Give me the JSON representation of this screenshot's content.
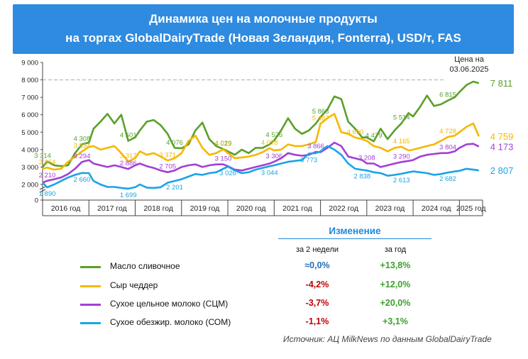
{
  "title": {
    "line1": "Динамика цен на молочные продукты",
    "line2": "на торгах GlobalDairyTrade (Новая Зеландия, Fonterra), USD/т, FAS"
  },
  "price_note": {
    "line1": "Цена на",
    "line2": "03.06.2025"
  },
  "source": "Источник: АЦ MilkNews по данным GlobalDairyTrade",
  "change_table": {
    "header": "Изменение",
    "col1": "за 2 недели",
    "col2": "за год",
    "rows": [
      {
        "name": "Масло сливочное",
        "color": "#5aa02c",
        "two_weeks": "≈0,0%",
        "two_weeks_color": "#1f6fb8",
        "year": "+13,8%",
        "year_color": "#3aa12a"
      },
      {
        "name": "Сыр чеддер",
        "color": "#f5b800",
        "two_weeks": "-4,2%",
        "two_weeks_color": "#c00000",
        "year": "+12,0%",
        "year_color": "#3aa12a"
      },
      {
        "name": "Сухое цельное молоко (СЦМ)",
        "color": "#a23fd6",
        "two_weeks": "-3,7%",
        "two_weeks_color": "#c00000",
        "year": "+20,0%",
        "year_color": "#3aa12a"
      },
      {
        "name": "Сухое обезжир. молоко (СОМ)",
        "color": "#1aa3e8",
        "two_weeks": "-1,1%",
        "two_weeks_color": "#c00000",
        "year": "+3,1%",
        "year_color": "#3aa12a"
      }
    ]
  },
  "chart_data": {
    "type": "line",
    "xlabel": "",
    "ylabel": "",
    "ylim": [
      0,
      9000
    ],
    "xlim": [
      2016.0,
      2025.5
    ],
    "y_ticks": [
      "0",
      "2 000",
      "3 000",
      "4 000",
      "5 000",
      "6 000",
      "7 000",
      "8 000",
      "9 000"
    ],
    "categories": [
      "2016 год",
      "2017 год",
      "2018 год",
      "2019 год",
      "2020 год",
      "2021 год",
      "2022 год",
      "2023 год",
      "2024 год",
      "2025 год"
    ],
    "reference_line": 8000,
    "grid": false,
    "series": [
      {
        "name": "Масло сливочное",
        "color": "#5aa02c",
        "end_label": "7 811",
        "x": [
          2016.0,
          2016.1,
          2016.25,
          2016.4,
          2016.55,
          2016.7,
          2016.85,
          2017.0,
          2017.1,
          2017.25,
          2017.4,
          2017.55,
          2017.7,
          2017.85,
          2018.0,
          2018.1,
          2018.25,
          2018.4,
          2018.55,
          2018.7,
          2018.85,
          2019.0,
          2019.15,
          2019.3,
          2019.45,
          2019.6,
          2019.75,
          2019.9,
          2020.0,
          2020.15,
          2020.3,
          2020.45,
          2020.6,
          2020.75,
          2020.9,
          2021.0,
          2021.15,
          2021.3,
          2021.45,
          2021.6,
          2021.75,
          2021.9,
          2022.0,
          2022.15,
          2022.3,
          2022.45,
          2022.6,
          2022.75,
          2022.9,
          2023.0,
          2023.15,
          2023.3,
          2023.45,
          2023.6,
          2023.75,
          2023.9,
          2024.0,
          2024.15,
          2024.3,
          2024.45,
          2024.6,
          2024.75,
          2024.9,
          2025.0,
          2025.15,
          2025.3,
          2025.42
        ],
        "values": [
          3000,
          3314,
          3100,
          3050,
          3100,
          3800,
          4308,
          4400,
          5200,
          5600,
          6050,
          5500,
          6000,
          4501,
          4700,
          5100,
          5600,
          5700,
          5400,
          4900,
          4100,
          4076,
          4300,
          5100,
          5550,
          4600,
          4200,
          4029,
          3900,
          3700,
          4000,
          3800,
          4100,
          4100,
          4300,
          4526,
          5100,
          5800,
          5200,
          4900,
          5100,
          5500,
          5868,
          6300,
          7050,
          6900,
          5600,
          5200,
          4700,
          4700,
          4479,
          5200,
          4600,
          5100,
          5514,
          6100,
          5900,
          6450,
          7100,
          6500,
          6600,
          6815,
          7000,
          7300,
          7700,
          7900,
          7811
        ],
        "labels": [
          [
            "3 314",
            2016.0,
            3314
          ],
          [
            "4 308",
            2016.85,
            4308
          ],
          [
            "4 501",
            2017.85,
            4501
          ],
          [
            "4 076",
            2018.85,
            4076
          ],
          [
            "4 029",
            2019.9,
            4029
          ],
          [
            "4 526",
            2021.0,
            4526
          ],
          [
            "5 868",
            2022.0,
            5868
          ],
          [
            "4 479",
            2023.15,
            4479
          ],
          [
            "5 514",
            2023.75,
            5514
          ],
          [
            "6 815",
            2024.75,
            6815
          ]
        ]
      },
      {
        "name": "Сыр чеддер",
        "color": "#f5b800",
        "end_label": "4 759",
        "x": [
          2016.0,
          2016.1,
          2016.25,
          2016.4,
          2016.55,
          2016.7,
          2016.85,
          2017.0,
          2017.1,
          2017.25,
          2017.4,
          2017.55,
          2017.7,
          2017.85,
          2018.0,
          2018.1,
          2018.25,
          2018.4,
          2018.55,
          2018.7,
          2018.85,
          2019.0,
          2019.15,
          2019.3,
          2019.45,
          2019.6,
          2019.75,
          2019.9,
          2020.0,
          2020.15,
          2020.3,
          2020.45,
          2020.6,
          2020.75,
          2020.9,
          2021.0,
          2021.15,
          2021.3,
          2021.45,
          2021.6,
          2021.75,
          2021.9,
          2022.0,
          2022.15,
          2022.3,
          2022.45,
          2022.6,
          2022.75,
          2022.9,
          2023.0,
          2023.15,
          2023.3,
          2023.45,
          2023.6,
          2023.75,
          2023.9,
          2024.0,
          2024.15,
          2024.3,
          2024.45,
          2024.6,
          2024.75,
          2024.9,
          2025.0,
          2025.15,
          2025.3,
          2025.42
        ],
        "values": [
          2900,
          2964,
          2850,
          2900,
          3300,
          3600,
          3894,
          4150,
          4200,
          4000,
          4100,
          4200,
          3800,
          3317,
          3500,
          3900,
          3700,
          3800,
          3600,
          3371,
          3500,
          3800,
          4500,
          4800,
          4100,
          3700,
          3800,
          4015,
          3800,
          3500,
          3550,
          3600,
          3700,
          3850,
          4078,
          3950,
          4000,
          4300,
          4200,
          4200,
          4300,
          4450,
          5487,
          5800,
          6050,
          5000,
          4900,
          4690,
          4600,
          4500,
          4200,
          4100,
          3900,
          4100,
          4165,
          3950,
          4000,
          4100,
          4200,
          4300,
          4500,
          4728,
          4800,
          5000,
          5300,
          5500,
          4759
        ],
        "labels": [
          [
            "2 964",
            2016.1,
            2964
          ],
          [
            "3 894",
            2016.85,
            3894
          ],
          [
            "3 317",
            2017.85,
            3317
          ],
          [
            "3 371",
            2018.7,
            3371
          ],
          [
            "4 015",
            2019.9,
            4015
          ],
          [
            "4 078",
            2020.9,
            4078
          ],
          [
            "5 487",
            2022.0,
            5487
          ],
          [
            "4 690",
            2022.75,
            4690
          ],
          [
            "4 165",
            2023.75,
            4165
          ],
          [
            "4 728",
            2024.75,
            4728
          ]
        ]
      },
      {
        "name": "Сухое цельное молоко (СЦМ)",
        "color": "#a23fd6",
        "end_label": "4 173",
        "x": [
          2016.0,
          2016.1,
          2016.25,
          2016.4,
          2016.55,
          2016.7,
          2016.85,
          2017.0,
          2017.1,
          2017.25,
          2017.4,
          2017.55,
          2017.7,
          2017.85,
          2018.0,
          2018.1,
          2018.25,
          2018.4,
          2018.55,
          2018.7,
          2018.85,
          2019.0,
          2019.15,
          2019.3,
          2019.45,
          2019.6,
          2019.75,
          2019.9,
          2020.0,
          2020.15,
          2020.3,
          2020.45,
          2020.6,
          2020.75,
          2020.9,
          2021.0,
          2021.15,
          2021.3,
          2021.45,
          2021.6,
          2021.75,
          2021.9,
          2022.0,
          2022.15,
          2022.3,
          2022.45,
          2022.6,
          2022.75,
          2022.9,
          2023.0,
          2023.15,
          2023.3,
          2023.45,
          2023.6,
          2023.75,
          2023.9,
          2024.0,
          2024.15,
          2024.3,
          2024.45,
          2024.6,
          2024.75,
          2024.9,
          2025.0,
          2025.15,
          2025.3,
          2025.42
        ],
        "values": [
          2100,
          2210,
          2300,
          2400,
          2600,
          2900,
          3294,
          3400,
          3200,
          3100,
          3000,
          3100,
          3000,
          2886,
          3100,
          3200,
          3050,
          2950,
          2800,
          2705,
          2800,
          3000,
          3100,
          3150,
          3000,
          3100,
          3150,
          3150,
          3050,
          2850,
          2800,
          2900,
          3000,
          3100,
          3200,
          3306,
          3500,
          3800,
          3700,
          3650,
          3700,
          3866,
          3850,
          4100,
          4400,
          4200,
          3600,
          3500,
          3400,
          3208,
          3200,
          3000,
          3100,
          3200,
          3290,
          3350,
          3400,
          3600,
          3700,
          3750,
          3800,
          3804,
          3900,
          4100,
          4300,
          4333,
          4173
        ],
        "labels": [
          [
            "2 210",
            2016.1,
            2210
          ],
          [
            "3 294",
            2016.85,
            3294
          ],
          [
            "2 886",
            2017.85,
            2886
          ],
          [
            "2 705",
            2018.7,
            2705
          ],
          [
            "3 150",
            2019.9,
            3150
          ],
          [
            "3 306",
            2021.0,
            3306
          ],
          [
            "3 866",
            2021.9,
            3866
          ],
          [
            "3 208",
            2023.0,
            3208
          ],
          [
            "3 290",
            2023.75,
            3290
          ],
          [
            "3 804",
            2024.75,
            3804
          ]
        ]
      },
      {
        "name": "Сухое обезжир. молоко (СОМ)",
        "color": "#1aa3e8",
        "end_label": "2 807",
        "x": [
          2016.0,
          2016.1,
          2016.25,
          2016.4,
          2016.55,
          2016.7,
          2016.85,
          2017.0,
          2017.1,
          2017.25,
          2017.4,
          2017.55,
          2017.7,
          2017.85,
          2018.0,
          2018.1,
          2018.25,
          2018.4,
          2018.55,
          2018.7,
          2018.85,
          2019.0,
          2019.15,
          2019.3,
          2019.45,
          2019.6,
          2019.75,
          2019.9,
          2020.0,
          2020.15,
          2020.3,
          2020.45,
          2020.6,
          2020.75,
          2020.9,
          2021.0,
          2021.15,
          2021.3,
          2021.45,
          2021.6,
          2021.75,
          2021.9,
          2022.0,
          2022.15,
          2022.3,
          2022.45,
          2022.6,
          2022.75,
          2022.9,
          2023.0,
          2023.15,
          2023.3,
          2023.45,
          2023.6,
          2023.75,
          2023.9,
          2024.0,
          2024.15,
          2024.3,
          2024.45,
          2024.6,
          2024.75,
          2024.9,
          2025.0,
          2025.15,
          2025.3,
          2025.42
        ],
        "values": [
          2100,
          1890,
          2000,
          2200,
          2400,
          2550,
          2660,
          2650,
          2200,
          2000,
          1950,
          1950,
          1800,
          1699,
          1900,
          2000,
          1850,
          1800,
          1900,
          2100,
          2201,
          2300,
          2450,
          2600,
          2550,
          2650,
          2700,
          2900,
          3026,
          2800,
          2650,
          2700,
          2850,
          2950,
          3044,
          3100,
          3200,
          3300,
          3350,
          3400,
          3773,
          3800,
          3900,
          4200,
          4000,
          3700,
          3200,
          2900,
          2838,
          2800,
          2700,
          2650,
          2500,
          2550,
          2613,
          2700,
          2750,
          2700,
          2650,
          2550,
          2600,
          2682,
          2750,
          2780,
          2900,
          2850,
          2807
        ],
        "labels": [
          [
            "1 890",
            2016.1,
            1890
          ],
          [
            "2 660",
            2016.85,
            2660
          ],
          [
            "1 699",
            2017.85,
            1699
          ],
          [
            "2 201",
            2018.85,
            2201
          ],
          [
            "3 026",
            2020.0,
            3026
          ],
          [
            "3 044",
            2020.9,
            3044
          ],
          [
            "3 773",
            2021.75,
            3773
          ],
          [
            "2 838",
            2022.9,
            2838
          ],
          [
            "2 613",
            2023.75,
            2613
          ],
          [
            "2 682",
            2024.75,
            2682
          ]
        ]
      }
    ]
  }
}
